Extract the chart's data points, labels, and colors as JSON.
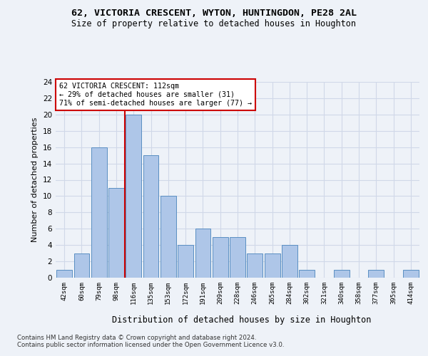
{
  "title1": "62, VICTORIA CRESCENT, WYTON, HUNTINGDON, PE28 2AL",
  "title2": "Size of property relative to detached houses in Houghton",
  "xlabel": "Distribution of detached houses by size in Houghton",
  "ylabel": "Number of detached properties",
  "bin_labels": [
    "42sqm",
    "60sqm",
    "79sqm",
    "98sqm",
    "116sqm",
    "135sqm",
    "153sqm",
    "172sqm",
    "191sqm",
    "209sqm",
    "228sqm",
    "246sqm",
    "265sqm",
    "284sqm",
    "302sqm",
    "321sqm",
    "340sqm",
    "358sqm",
    "377sqm",
    "395sqm",
    "414sqm"
  ],
  "bar_values": [
    1,
    3,
    16,
    11,
    20,
    15,
    10,
    4,
    6,
    5,
    5,
    3,
    3,
    4,
    1,
    0,
    1,
    0,
    1,
    0,
    1
  ],
  "bar_color": "#aec6e8",
  "bar_edge_color": "#5a8fc2",
  "annotation_box_text": "62 VICTORIA CRESCENT: 112sqm\n← 29% of detached houses are smaller (31)\n71% of semi-detached houses are larger (77) →",
  "annotation_box_color": "#ffffff",
  "annotation_box_edge_color": "#cc0000",
  "red_line_color": "#cc0000",
  "ylim": [
    0,
    24
  ],
  "yticks": [
    0,
    2,
    4,
    6,
    8,
    10,
    12,
    14,
    16,
    18,
    20,
    22,
    24
  ],
  "footnote1": "Contains HM Land Registry data © Crown copyright and database right 2024.",
  "footnote2": "Contains public sector information licensed under the Open Government Licence v3.0.",
  "grid_color": "#d0d8e8",
  "background_color": "#eef2f8"
}
